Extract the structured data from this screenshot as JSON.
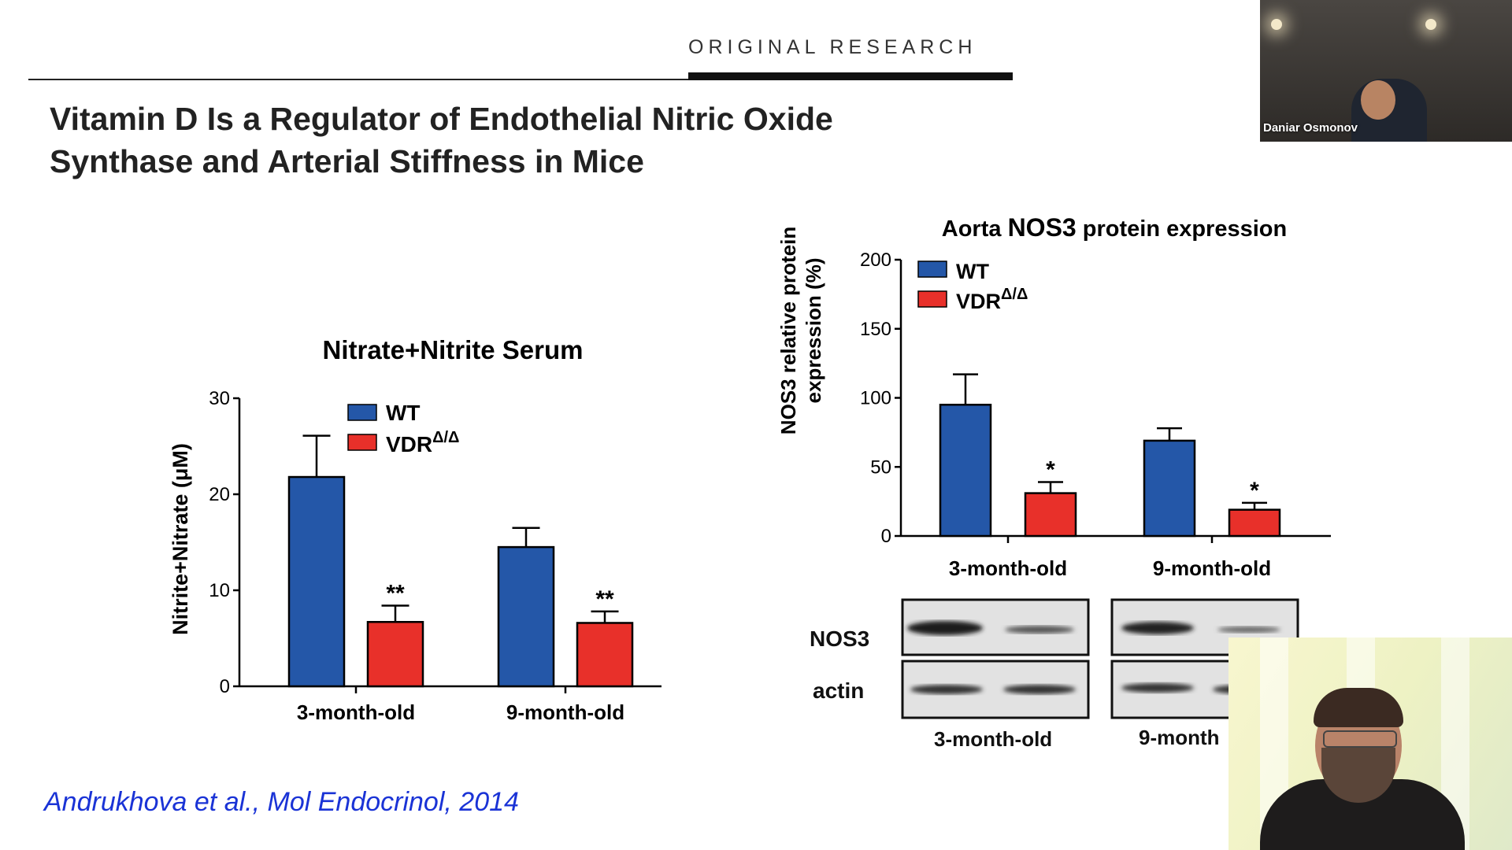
{
  "header": {
    "label": "ORIGINAL   RESEARCH"
  },
  "title": {
    "line1": "Vitamin D Is a Regulator of Endothelial Nitric Oxide",
    "line2": "Synthase and Arterial Stiffness in Mice"
  },
  "citation": "Andrukhova et al., Mol Endocrinol, 2014",
  "colors": {
    "wt": "#2457a8",
    "vdr": "#e8302a",
    "citation": "#1a33d6"
  },
  "chart_data": [
    {
      "type": "bar",
      "title": "Nitrate+Nitrite Serum",
      "ylabel": "Nitrite+Nitrate (μM)",
      "xlabel": "",
      "ylim": [
        0,
        30
      ],
      "yticks": [
        "0",
        "10",
        "20",
        "30"
      ],
      "legend_position": "top-center",
      "categories": [
        "3-month-old",
        "9-month-old"
      ],
      "series": [
        {
          "name": "WT",
          "values": [
            21.8,
            14.5
          ],
          "errors": [
            4.3,
            2.0
          ]
        },
        {
          "name": "VDR",
          "superscript": "Δ/Δ",
          "values": [
            6.7,
            6.6
          ],
          "errors": [
            1.7,
            1.2
          ]
        }
      ],
      "annotations": [
        {
          "category": "3-month-old",
          "series": "VDR",
          "text": "**"
        },
        {
          "category": "9-month-old",
          "series": "VDR",
          "text": "**"
        }
      ]
    },
    {
      "type": "bar",
      "title_plain": "Aorta ",
      "title_bold": "NOS3",
      "title_rest": " protein expression",
      "ylabel_line1": "NOS3 relative protein",
      "ylabel_line2": "expression (%)",
      "ylim": [
        0,
        200
      ],
      "yticks": [
        "0",
        "50",
        "100",
        "150",
        "200"
      ],
      "legend_position": "top-left",
      "categories": [
        "3-month-old",
        "9-month-old"
      ],
      "series": [
        {
          "name": "WT",
          "values": [
            95,
            69
          ],
          "errors": [
            22,
            9
          ]
        },
        {
          "name": "VDR",
          "superscript": "Δ/Δ",
          "values": [
            31,
            19
          ],
          "errors": [
            8,
            5
          ]
        }
      ],
      "annotations": [
        {
          "category": "3-month-old",
          "series": "VDR",
          "text": "*"
        },
        {
          "category": "9-month-old",
          "series": "VDR",
          "text": "*"
        }
      ]
    }
  ],
  "blot": {
    "row_labels": [
      "NOS3",
      "actin"
    ],
    "group_labels": [
      "3-month-old",
      "9-month"
    ]
  },
  "participants": {
    "top_name": "Daniar Osmonov"
  }
}
